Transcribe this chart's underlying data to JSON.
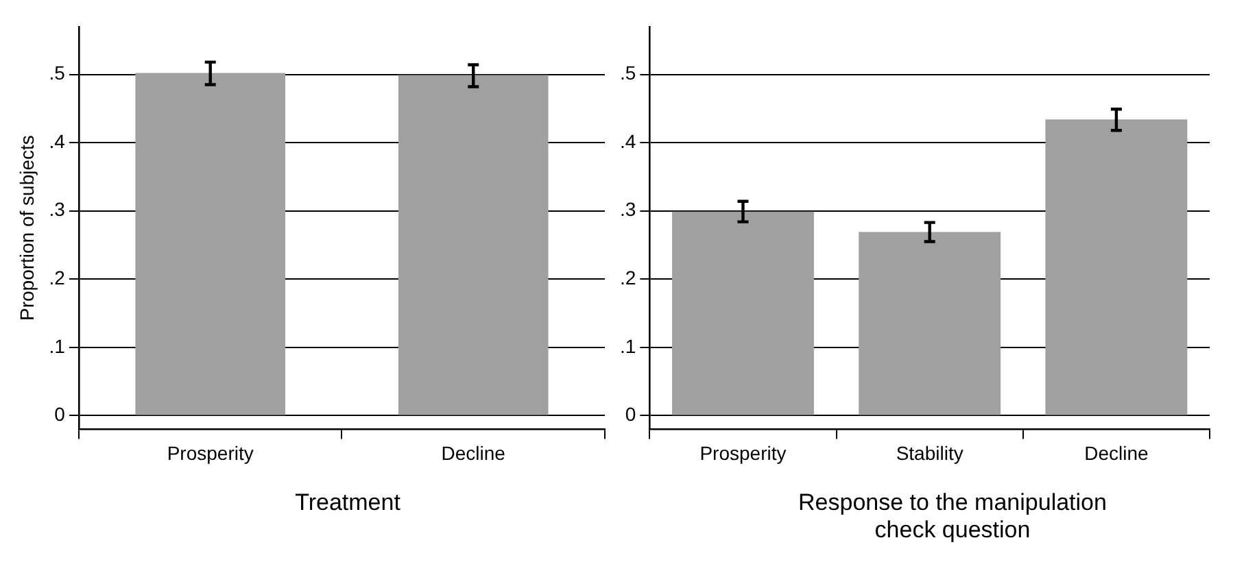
{
  "chart_data": [
    {
      "type": "bar",
      "categories": [
        "Prosperity",
        "Decline"
      ],
      "values": [
        0.502,
        0.499
      ],
      "errors": [
        [
          0.485,
          0.518
        ],
        [
          0.482,
          0.514
        ]
      ],
      "color": "#a0a0a0",
      "ylabel": "Proportion of subjects",
      "xlabel": "Treatment",
      "ylim": [
        -0.02,
        0.57
      ],
      "yticks": [
        {
          "value": 0,
          "label": "0"
        },
        {
          "value": 0.1,
          "label": ".1"
        },
        {
          "value": 0.2,
          "label": ".2"
        },
        {
          "value": 0.3,
          "label": ".3"
        },
        {
          "value": 0.4,
          "label": ".4"
        },
        {
          "value": 0.5,
          "label": ".5"
        }
      ],
      "grid": "y",
      "legend": false
    },
    {
      "type": "bar",
      "categories": [
        "Prosperity",
        "Stability",
        "Decline"
      ],
      "values": [
        0.299,
        0.269,
        0.434
      ],
      "errors": [
        [
          0.284,
          0.314
        ],
        [
          0.255,
          0.283
        ],
        [
          0.418,
          0.449
        ]
      ],
      "color": "#a0a0a0",
      "xlabel": "Response to the manipulation check question",
      "ylim": [
        -0.02,
        0.57
      ],
      "yticks": [
        {
          "value": 0,
          "label": "0"
        },
        {
          "value": 0.1,
          "label": ".1"
        },
        {
          "value": 0.2,
          "label": ".2"
        },
        {
          "value": 0.3,
          "label": ".3"
        },
        {
          "value": 0.4,
          "label": ".4"
        },
        {
          "value": 0.5,
          "label": ".5"
        }
      ],
      "grid": "y",
      "legend": false
    }
  ]
}
